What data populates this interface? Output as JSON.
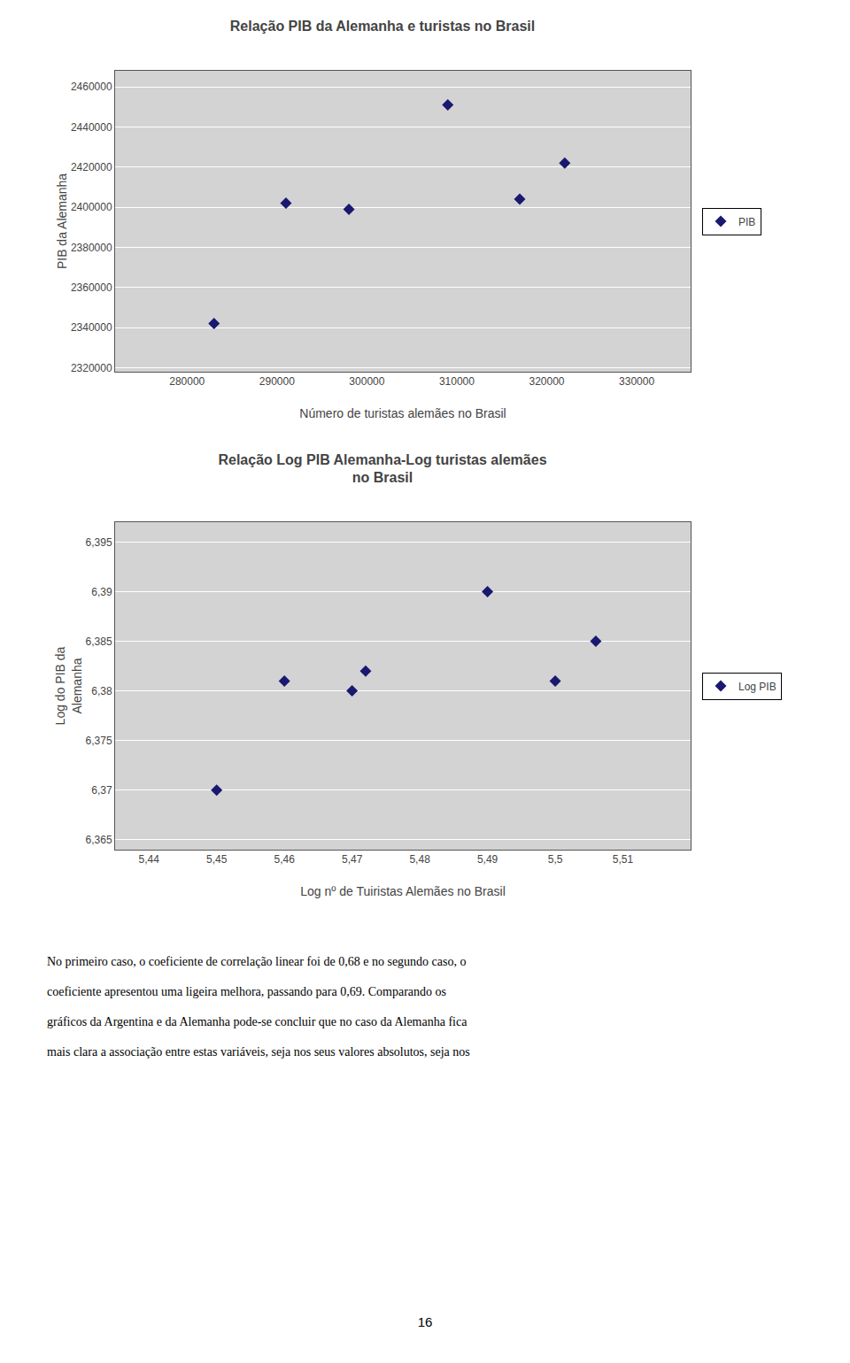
{
  "chart_data": [
    {
      "type": "scatter",
      "title": "Relação PIB da Alemanha e turistas no Brasil",
      "xlabel": "Número de turistas alemães no Brasil",
      "ylabel": "PIB da Alemanha",
      "x": [
        283000,
        291000,
        298000,
        309000,
        317000,
        322000
      ],
      "series": [
        {
          "name": "PIB",
          "color": "#191970",
          "marker": "diamond",
          "values": [
            2342000,
            2402000,
            2399000,
            2451000,
            2404000,
            2422000
          ]
        }
      ],
      "xlim": [
        272000,
        336000
      ],
      "xticks": [
        280000,
        290000,
        300000,
        310000,
        320000,
        330000
      ],
      "ylim": [
        2318000,
        2468000
      ],
      "yticks": [
        2320000,
        2340000,
        2360000,
        2380000,
        2400000,
        2420000,
        2440000,
        2460000
      ],
      "grid": "y",
      "legend": "right"
    },
    {
      "type": "scatter",
      "title": "Relação Log PIB Alemanha-Log turistas alemães\nno Brasil",
      "xlabel": "Log nº de Tuiristas Alemães no Brasil",
      "ylabel": "Log do PIB da\nAlemanha",
      "x": [
        5.45,
        5.46,
        5.47,
        5.472,
        5.49,
        5.5,
        5.506
      ],
      "series": [
        {
          "name": "Log PIB",
          "color": "#191970",
          "marker": "diamond",
          "values": [
            6.37,
            6.381,
            6.38,
            6.382,
            6.39,
            6.381,
            6.385
          ]
        }
      ],
      "xlim": [
        5.435,
        5.52
      ],
      "xticks": [
        {
          "value": 5.44,
          "label": "5,44"
        },
        {
          "value": 5.45,
          "label": "5,45"
        },
        {
          "value": 5.46,
          "label": "5,46"
        },
        {
          "value": 5.47,
          "label": "5,47"
        },
        {
          "value": 5.48,
          "label": "5,48"
        },
        {
          "value": 5.49,
          "label": "5,49"
        },
        {
          "value": 5.5,
          "label": "5,5"
        },
        {
          "value": 5.51,
          "label": "5,51"
        }
      ],
      "ylim": [
        6.364,
        6.397
      ],
      "yticks": [
        {
          "value": 6.365,
          "label": "6,365"
        },
        {
          "value": 6.37,
          "label": "6,37"
        },
        {
          "value": 6.375,
          "label": "6,375"
        },
        {
          "value": 6.38,
          "label": "6,38"
        },
        {
          "value": 6.385,
          "label": "6,385"
        },
        {
          "value": 6.39,
          "label": "6,39"
        },
        {
          "value": 6.395,
          "label": "6,395"
        }
      ],
      "grid": "y",
      "legend": "right"
    }
  ],
  "body_text": [
    "No primeiro caso, o coeficiente de correlação linear foi de 0,68 e no segundo caso, o",
    "coeficiente apresentou uma ligeira melhora, passando para 0,69. Comparando os",
    "gráficos da Argentina e da Alemanha pode-se concluir que no caso da Alemanha fica",
    "mais clara a associação entre estas variáveis, seja nos seus valores absolutos, seja nos"
  ],
  "page_number": "16"
}
